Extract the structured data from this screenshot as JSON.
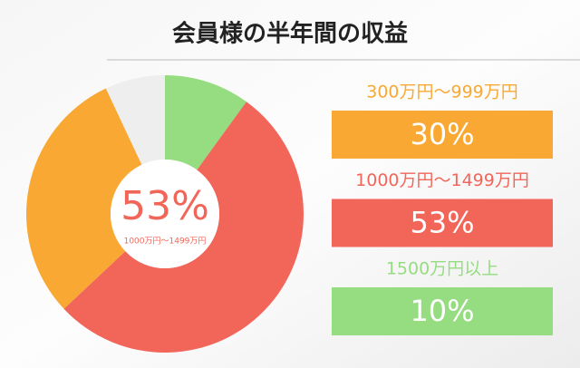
{
  "chart_data": {
    "type": "donut",
    "title": "会員様の半年間の収益",
    "categories": [
      "1500万円以上",
      "1000万円〜1499万円",
      "300万円〜999万円",
      null
    ],
    "values": [
      10,
      53,
      30,
      7
    ],
    "value_labels": [
      "10%",
      "53%",
      "30%",
      null
    ],
    "colors": [
      "#96dc80",
      "#f2665a",
      "#f9a833",
      "#eeeeee"
    ],
    "highlight": 1
  }
}
